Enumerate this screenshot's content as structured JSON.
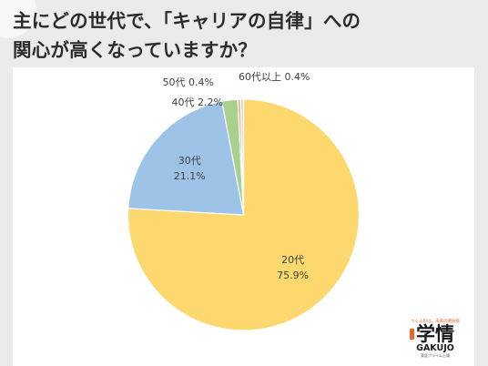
{
  "title": {
    "line1": "主にどの世代で、「キャリアの自律」への",
    "line2": "関心が高くなっていますか？"
  },
  "chart_data": {
    "type": "pie",
    "slices": [
      {
        "label": "20代",
        "value": 75.9,
        "display": "75.9%",
        "color": "#fdd86e"
      },
      {
        "label": "30代",
        "value": 21.1,
        "display": "21.1%",
        "color": "#9dc3e6"
      },
      {
        "label": "40代",
        "value": 2.2,
        "display": "2.2%",
        "color": "#a9d18e"
      },
      {
        "label": "50代",
        "value": 0.4,
        "display": "0.4%",
        "color": "#f4b183"
      },
      {
        "label": "60代以上",
        "value": 0.4,
        "display": "0.4%",
        "color": "#d9d9d9"
      }
    ]
  },
  "logo": {
    "tagline": "つくるのは、未来の選択肢",
    "name_kanji": "学情",
    "name_roman": "GAKUJO",
    "subline": "東証プライム上場"
  }
}
